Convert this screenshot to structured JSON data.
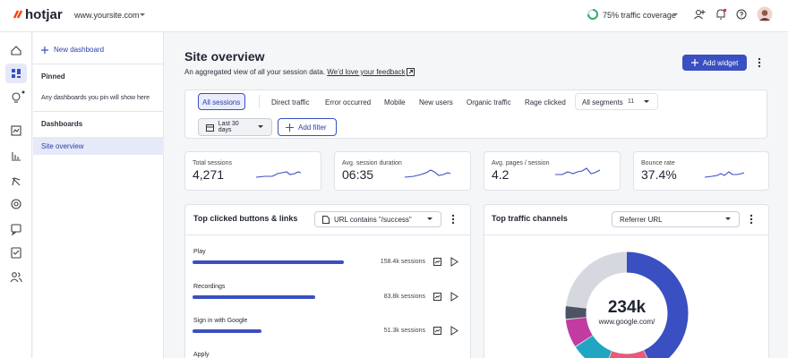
{
  "topbar": {
    "logo": "hotjar",
    "site": "www.yoursite.com",
    "coverage": "75% traffic coverage"
  },
  "sidebar": {
    "new_dashboard": "New dashboard",
    "pinned": "Pinned",
    "pinned_empty": "Any dashboards you pin will show here",
    "dashboards": "Dashboards",
    "items": [
      "Site overview"
    ]
  },
  "header": {
    "title": "Site overview",
    "subtitle": "An aggregated view of all your session data.",
    "feedback_link": "We’d love your feedback",
    "add_widget": "Add widget"
  },
  "segments": {
    "tabs": [
      "All sessions",
      "Direct traffic",
      "Error occurred",
      "Mobile",
      "New users",
      "Organic traffic",
      "Rage clicked"
    ],
    "all_segments": "All segments",
    "count": 11
  },
  "filters": {
    "date": "Last 30 days",
    "add_filter": "Add filter"
  },
  "kpis": [
    {
      "label": "Total sessions",
      "value": "4,271"
    },
    {
      "label": "Avg. session duration",
      "value": "06:35"
    },
    {
      "label": "Avg. pages / session",
      "value": "4.2"
    },
    {
      "label": "Bounce rate",
      "value": "37.4%"
    }
  ],
  "top_clicked": {
    "title": "Top clicked buttons & links",
    "filter": "URL contains \"/success\"",
    "rows": [
      {
        "label": "Play",
        "sessions": "158.4k sessions"
      },
      {
        "label": "Recordings",
        "sessions": "83.8k sessions"
      },
      {
        "label": "Sign in with Google",
        "sessions": "51.3k sessions"
      },
      {
        "label": "Apply"
      }
    ]
  },
  "traffic": {
    "title": "Top traffic channels",
    "filter": "Referrer URL",
    "center_value": "234k",
    "center_label": "www.google.com/"
  }
}
